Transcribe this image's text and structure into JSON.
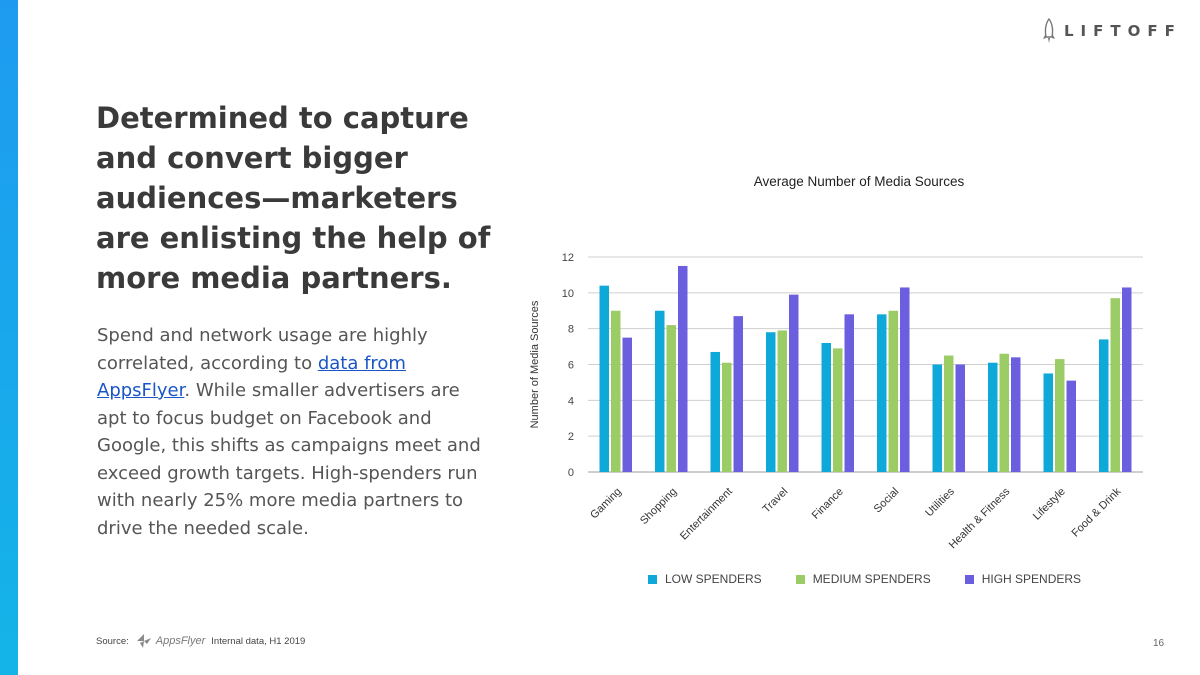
{
  "brand": {
    "logo_text": "LIFTOFF"
  },
  "headline": "Determined to capture and convert bigger audiences—marketers are enlisting the help of more media partners.",
  "body": {
    "before_link": "Spend and network usage are highly correlated, according to ",
    "link_text": "data from AppsFlyer",
    "after_link": ". While smaller advertisers are apt to focus budget on Facebook and Google, this shifts as campaigns meet and exceed growth targets. High-spenders run with nearly 25% more media partners to drive the needed scale."
  },
  "source": {
    "label": "Source:",
    "logo_text": "AppsFlyer",
    "note": "Internal data, H1 2019"
  },
  "page_number": "16",
  "colors": {
    "accent": "#1e9bf0",
    "low": "#0fa9d9",
    "medium": "#9ccc65",
    "high": "#6b5fe0"
  },
  "chart_data": {
    "type": "bar",
    "title": "Average Number of Media Sources",
    "xlabel": "",
    "ylabel": "Number of Media Sources",
    "ylim": [
      0,
      12
    ],
    "yticks": [
      "0",
      "2",
      "4",
      "6",
      "8",
      "10",
      "12"
    ],
    "categories": [
      "Gaming",
      "Shopping",
      "Entertainment",
      "Travel",
      "Finance",
      "Social",
      "Utilities",
      "Health & Fitness",
      "Lifestyle",
      "Food & Drink"
    ],
    "series": [
      {
        "name": "LOW SPENDERS",
        "values": [
          10.4,
          9.0,
          6.7,
          7.8,
          7.2,
          8.8,
          6.0,
          6.1,
          5.5,
          7.4
        ]
      },
      {
        "name": "MEDIUM SPENDERS",
        "values": [
          9.0,
          8.2,
          6.1,
          7.9,
          6.9,
          9.0,
          6.5,
          6.6,
          6.3,
          9.7
        ]
      },
      {
        "name": "HIGH SPENDERS",
        "values": [
          7.5,
          11.5,
          8.7,
          9.9,
          8.8,
          10.3,
          6.0,
          6.4,
          5.1,
          10.3
        ]
      }
    ],
    "legend_position": "bottom"
  }
}
